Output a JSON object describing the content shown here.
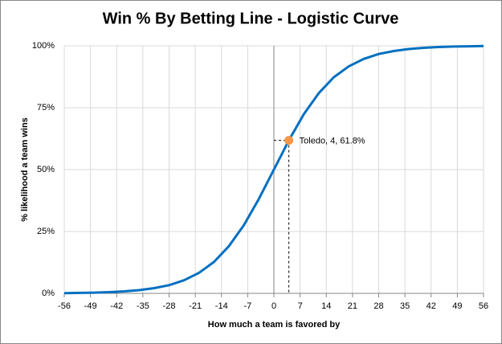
{
  "chart_data": {
    "type": "line",
    "title": "Win % By Betting Line - Logistic Curve",
    "x_label": "How much a team is favored by",
    "y_label": "% likelihood a team wins",
    "x": [
      -56,
      -52,
      -48,
      -44,
      -40,
      -36,
      -32,
      -28,
      -24,
      -20,
      -16,
      -12,
      -8,
      -4,
      0,
      4,
      8,
      12,
      16,
      20,
      24,
      28,
      32,
      36,
      40,
      44,
      48,
      52,
      56
    ],
    "values": [
      0.1,
      0.2,
      0.3,
      0.5,
      0.8,
      1.3,
      2.1,
      3.3,
      5.3,
      8.3,
      12.7,
      19.1,
      27.6,
      38.2,
      50,
      61.8,
      72.4,
      80.9,
      87.3,
      91.7,
      94.7,
      96.7,
      97.9,
      98.7,
      99.2,
      99.5,
      99.7,
      99.8,
      99.9
    ],
    "color": "#0070c0",
    "xlim": [
      -56,
      56
    ],
    "xticks": [
      -56,
      -49,
      -42,
      -35,
      -28,
      -21,
      -14,
      -7,
      0,
      7,
      14,
      21,
      28,
      35,
      42,
      49,
      56
    ],
    "ylim": [
      0,
      100
    ],
    "yticks": [
      {
        "value": 0,
        "label": "0%"
      },
      {
        "value": 25,
        "label": "25%"
      },
      {
        "value": 50,
        "label": "50%"
      },
      {
        "value": 75,
        "label": "75%"
      },
      {
        "value": 100,
        "label": "100%"
      }
    ],
    "grid": true,
    "point": {
      "text": "Toledo, 4, 61.8%",
      "x": 4,
      "y": 61.8,
      "color": "#f79646"
    }
  }
}
